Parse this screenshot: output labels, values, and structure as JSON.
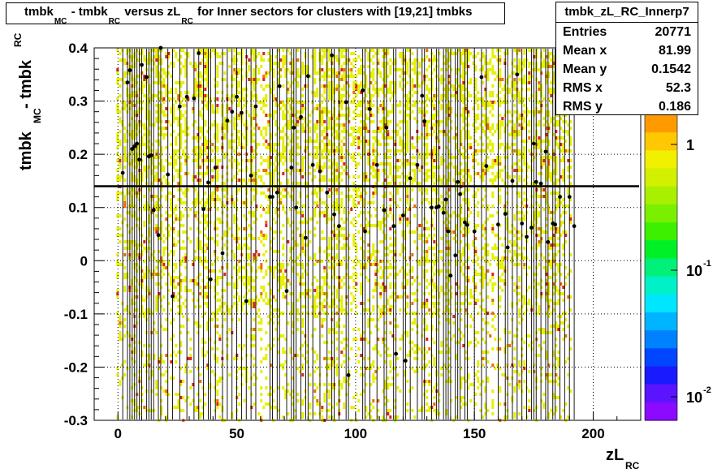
{
  "title": {
    "parts": [
      {
        "text": "tmbk",
        "sub": "MC"
      },
      {
        "text": " - tmbk",
        "sub": "RC"
      },
      {
        "text": " versus zL",
        "sub": "RC"
      },
      {
        "text": " for Inner sectors for clusters with [19,21] tmbks",
        "sub": ""
      }
    ]
  },
  "stats": {
    "name": "tmbk_zL_RC_Innerp7",
    "rows": [
      {
        "label": "Entries",
        "value": "20771"
      },
      {
        "label": "Mean x",
        "value": "81.99"
      },
      {
        "label": "Mean y",
        "value": "0.1542"
      },
      {
        "label": "RMS x",
        "value": "52.3"
      },
      {
        "label": "RMS y",
        "value": "0.186"
      }
    ]
  },
  "colors": {
    "yellow": "#e6f000",
    "orange": "#f06a00",
    "red": "#e02020",
    "grid": "#000000",
    "fit_line": "#000000"
  },
  "chart_data": {
    "type": "heatmap",
    "title": "tmbk_MC - tmbk_RC versus zL_RC for Inner sectors for clusters with [19,21] tmbks",
    "xlabel": "zL_RC",
    "ylabel": "tmbk_MC - tmbk_RC",
    "xlim": [
      -10,
      220
    ],
    "ylim": [
      -0.3,
      0.4
    ],
    "x_ticks": [
      0,
      50,
      100,
      150,
      200
    ],
    "y_ticks": [
      -0.3,
      -0.2,
      -0.1,
      0,
      0.1,
      0.2,
      0.3,
      0.4
    ],
    "grid": true,
    "log_z": true,
    "z_ticks": [
      {
        "value": 1,
        "label": "1",
        "sup": ""
      },
      {
        "value": 0.1,
        "label": "10",
        "sup": "-1"
      },
      {
        "value": 0.01,
        "label": "10",
        "sup": "-2"
      }
    ],
    "occupied_x_range": [
      0,
      190
    ],
    "reference_line_y": 0.14,
    "profile_points": [
      {
        "x": 2,
        "y": 0.165
      },
      {
        "x": 4,
        "y": 0.335
      },
      {
        "x": 5,
        "y": 0.358
      },
      {
        "x": 6,
        "y": 0.21
      },
      {
        "x": 7,
        "y": 0.215
      },
      {
        "x": 8,
        "y": 0.22
      },
      {
        "x": 9,
        "y": 0.19
      },
      {
        "x": 10,
        "y": 0.368
      },
      {
        "x": 12,
        "y": 0.345
      },
      {
        "x": 13,
        "y": 0.196
      },
      {
        "x": 14,
        "y": 0.198
      },
      {
        "x": 15,
        "y": 0.095
      },
      {
        "x": 17,
        "y": 0.048
      },
      {
        "x": 18,
        "y": 0.4
      },
      {
        "x": 21,
        "y": 0.162
      },
      {
        "x": 23,
        "y": -0.067
      },
      {
        "x": 26,
        "y": 0.29
      },
      {
        "x": 29,
        "y": 0.308
      },
      {
        "x": 32,
        "y": 0.305
      },
      {
        "x": 34,
        "y": 0.39
      },
      {
        "x": 36,
        "y": 0.097
      },
      {
        "x": 38,
        "y": 0.147
      },
      {
        "x": 39,
        "y": -0.035
      },
      {
        "x": 41,
        "y": 0.175
      },
      {
        "x": 44,
        "y": 0.014
      },
      {
        "x": 46,
        "y": 0.263
      },
      {
        "x": 48,
        "y": 0.28
      },
      {
        "x": 50,
        "y": 0.308
      },
      {
        "x": 52,
        "y": 0.278
      },
      {
        "x": 54,
        "y": -0.076
      },
      {
        "x": 56,
        "y": 0.16
      },
      {
        "x": 58,
        "y": 0.29
      },
      {
        "x": 64,
        "y": 0.12
      },
      {
        "x": 65,
        "y": 0.12
      },
      {
        "x": 67,
        "y": 0.128
      },
      {
        "x": 68,
        "y": 0.328
      },
      {
        "x": 71,
        "y": -0.057
      },
      {
        "x": 73,
        "y": 0.175
      },
      {
        "x": 74,
        "y": 0.25
      },
      {
        "x": 75,
        "y": 0.1
      },
      {
        "x": 77,
        "y": 0.27
      },
      {
        "x": 79,
        "y": 0.043
      },
      {
        "x": 80,
        "y": 0.347
      },
      {
        "x": 82,
        "y": 0.18
      },
      {
        "x": 85,
        "y": 0.168
      },
      {
        "x": 88,
        "y": 0.128
      },
      {
        "x": 90,
        "y": 0.386
      },
      {
        "x": 91,
        "y": 0.087
      },
      {
        "x": 93,
        "y": 0.065
      },
      {
        "x": 96,
        "y": 0.298
      },
      {
        "x": 97,
        "y": -0.215
      },
      {
        "x": 103,
        "y": 0.32
      },
      {
        "x": 104,
        "y": 0.055
      },
      {
        "x": 106,
        "y": 0.285
      },
      {
        "x": 109,
        "y": 0.18
      },
      {
        "x": 112,
        "y": 0.095
      },
      {
        "x": 113,
        "y": 0.25
      },
      {
        "x": 116,
        "y": 0.065
      },
      {
        "x": 117,
        "y": -0.175
      },
      {
        "x": 120,
        "y": 0.085
      },
      {
        "x": 121,
        "y": -0.188
      },
      {
        "x": 123,
        "y": 0.155
      },
      {
        "x": 126,
        "y": 0.18
      },
      {
        "x": 128,
        "y": 0.31
      },
      {
        "x": 129,
        "y": 0.262
      },
      {
        "x": 132,
        "y": 0.1
      },
      {
        "x": 134,
        "y": 0.1
      },
      {
        "x": 135,
        "y": 0.102
      },
      {
        "x": 137,
        "y": 0.09
      },
      {
        "x": 138,
        "y": 0.115
      },
      {
        "x": 139,
        "y": 0.055
      },
      {
        "x": 140,
        "y": -0.028
      },
      {
        "x": 142,
        "y": 0.01
      },
      {
        "x": 143,
        "y": 0.148
      },
      {
        "x": 144,
        "y": 0.125
      },
      {
        "x": 146,
        "y": 0.072
      },
      {
        "x": 147,
        "y": 0.067
      },
      {
        "x": 150,
        "y": 0.055
      },
      {
        "x": 153,
        "y": 0.345
      },
      {
        "x": 155,
        "y": 0.178
      },
      {
        "x": 160,
        "y": 0.068
      },
      {
        "x": 163,
        "y": 0.088
      },
      {
        "x": 164,
        "y": 0.025
      },
      {
        "x": 166,
        "y": 0.15
      },
      {
        "x": 168,
        "y": 0.35
      },
      {
        "x": 170,
        "y": 0.07
      },
      {
        "x": 172,
        "y": 0.045
      },
      {
        "x": 174,
        "y": 0.062
      },
      {
        "x": 175,
        "y": 0.22
      },
      {
        "x": 176,
        "y": 0.148
      },
      {
        "x": 178,
        "y": 0.145
      },
      {
        "x": 180,
        "y": 0.205
      },
      {
        "x": 181,
        "y": 0.035
      },
      {
        "x": 183,
        "y": 0.07
      },
      {
        "x": 184,
        "y": 0.068
      },
      {
        "x": 186,
        "y": 0.12
      },
      {
        "x": 188,
        "y": 0.28
      },
      {
        "x": 190,
        "y": 0.12
      },
      {
        "x": 192,
        "y": 0.065
      }
    ],
    "dominant_colors": [
      "yellow",
      "orange",
      "red"
    ]
  }
}
